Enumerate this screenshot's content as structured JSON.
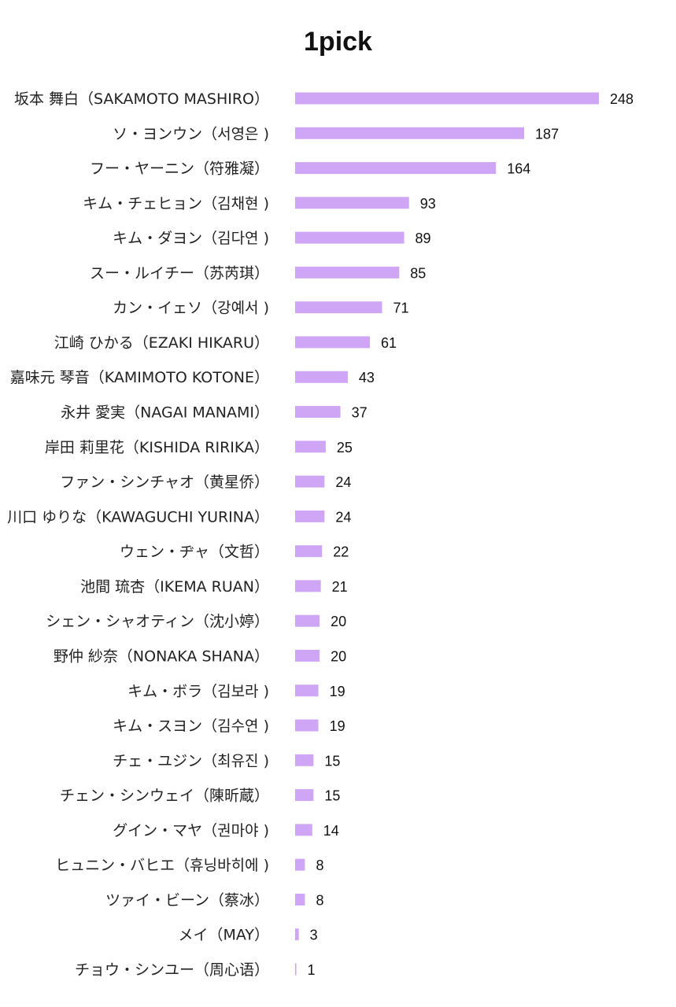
{
  "chart_data": {
    "type": "bar",
    "orientation": "horizontal",
    "title": "1pick",
    "bar_color": "#cfa6f5",
    "categories": [
      "坂本 舞白（SAKAMOTO MASHIRO）",
      "ソ・ヨンウン（서영은 )",
      "フー・ヤーニン（符雅凝）",
      "キム・チェヒョン（김채현 )",
      "キム・ダヨン（김다연 )",
      "スー・ルイチー（苏芮琪）",
      "カン・イェソ（강예서 )",
      "江崎 ひかる（EZAKI HIKARU）",
      "嘉味元 琴音（KAMIMOTO KOTONE）",
      "永井 愛実（NAGAI MANAMI）",
      "岸田 莉里花（KISHIDA RIRIKA）",
      "ファン・シンチャオ（黄星侨）",
      "川口 ゆりな（KAWAGUCHI YURINA）",
      "ウェン・ヂャ（文哲）",
      "池間 琉杏（IKEMA RUAN）",
      "シェン・シャオティン（沈小婷）",
      "野仲 紗奈（NONAKA SHANA）",
      "キム・ボラ（김보라 )",
      "キム・スヨン（김수연 )",
      "チェ・ユジン（최유진 )",
      "チェン・シンウェイ（陳昕蔵）",
      "グイン・マヤ（권마야 )",
      "ヒュニン・バヒエ（휴닝바히에 )",
      "ツァイ・ビーン（蔡冰）",
      "メイ（MAY）",
      "チョウ・シンユー（周心语）"
    ],
    "values": [
      248,
      187,
      164,
      93,
      89,
      85,
      71,
      61,
      43,
      37,
      25,
      24,
      24,
      22,
      21,
      20,
      20,
      19,
      19,
      15,
      15,
      14,
      8,
      8,
      3,
      1
    ],
    "xlim": [
      0,
      248
    ],
    "grid": false,
    "legend": "none"
  }
}
